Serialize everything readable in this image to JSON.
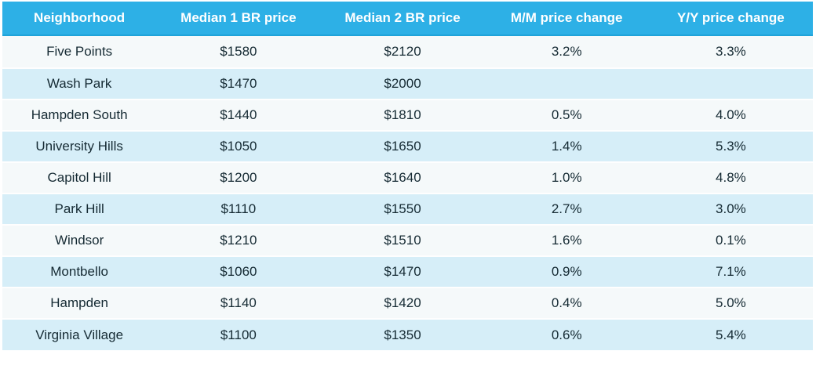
{
  "chart_data": {
    "type": "table",
    "columns": [
      "Neighborhood",
      "Median 1 BR price",
      "Median 2 BR price",
      "M/M price change",
      "Y/Y price change"
    ],
    "rows": [
      [
        "Five Points",
        "$1580",
        "$2120",
        "3.2%",
        "3.3%"
      ],
      [
        "Wash Park",
        "$1470",
        "$2000",
        "",
        ""
      ],
      [
        "Hampden South",
        "$1440",
        "$1810",
        "0.5%",
        "4.0%"
      ],
      [
        "University Hills",
        "$1050",
        "$1650",
        "1.4%",
        "5.3%"
      ],
      [
        "Capitol Hill",
        "$1200",
        "$1640",
        "1.0%",
        "4.8%"
      ],
      [
        "Park Hill",
        "$1110",
        "$1550",
        "2.7%",
        "3.0%"
      ],
      [
        "Windsor",
        "$1210",
        "$1510",
        "1.6%",
        "0.1%"
      ],
      [
        "Montbello",
        "$1060",
        "$1470",
        "0.9%",
        "7.1%"
      ],
      [
        "Hampden",
        "$1140",
        "$1420",
        "0.4%",
        "5.0%"
      ],
      [
        "Virginia Village",
        "$1100",
        "$1350",
        "0.6%",
        "5.4%"
      ]
    ]
  },
  "colors": {
    "header_bg": "#2DB0E6",
    "header_border": "#1FA3D9",
    "header_text": "#FFFFFF",
    "row_light_bg": "#F5F9FA",
    "row_blue_bg": "#D6EEF8",
    "row_separator": "#FEFEFE",
    "cell_text": "#152A33"
  }
}
